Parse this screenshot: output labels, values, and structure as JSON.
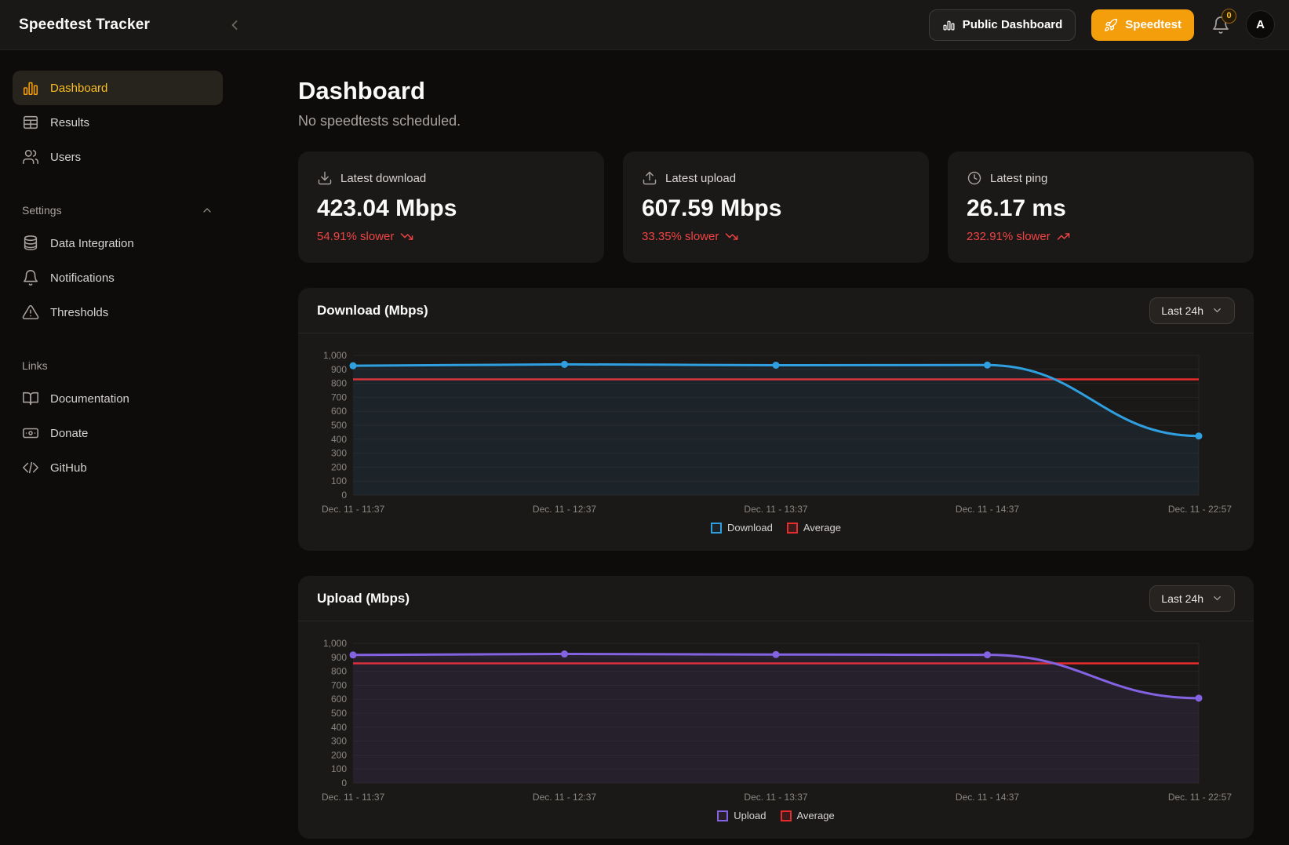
{
  "colors": {
    "accent": "#f59e0b",
    "negative": "#ef4444"
  },
  "header": {
    "app_title": "Speedtest Tracker",
    "public_dashboard_label": "Public Dashboard",
    "speedtest_label": "Speedtest",
    "notification_count": "0",
    "avatar_initial": "A"
  },
  "sidebar": {
    "items": [
      {
        "label": "Dashboard",
        "active": true
      },
      {
        "label": "Results",
        "active": false
      },
      {
        "label": "Users",
        "active": false
      }
    ],
    "settings_label": "Settings",
    "settings_items": [
      {
        "label": "Data Integration"
      },
      {
        "label": "Notifications"
      },
      {
        "label": "Thresholds"
      }
    ],
    "links_label": "Links",
    "links_items": [
      {
        "label": "Documentation"
      },
      {
        "label": "Donate"
      },
      {
        "label": "GitHub"
      }
    ]
  },
  "main": {
    "title": "Dashboard",
    "subtitle": "No speedtests scheduled.",
    "stats": [
      {
        "label": "Latest download",
        "value": "423.04 Mbps",
        "delta": "54.91% slower",
        "trend": "down"
      },
      {
        "label": "Latest upload",
        "value": "607.59 Mbps",
        "delta": "33.35% slower",
        "trend": "down"
      },
      {
        "label": "Latest ping",
        "value": "26.17 ms",
        "delta": "232.91% slower",
        "trend": "up"
      }
    ]
  },
  "chart_data": [
    {
      "type": "line",
      "title": "Download (Mbps)",
      "range_selector": "Last 24h",
      "x": [
        "Dec. 11 - 11:37",
        "Dec. 11 - 12:37",
        "Dec. 11 - 13:37",
        "Dec. 11 - 14:37",
        "Dec. 11 - 22:57"
      ],
      "series": [
        {
          "name": "Download",
          "values": [
            926,
            936,
            930,
            931,
            423.04
          ],
          "color": "#2f9fe0",
          "fill": "rgba(47,159,224,0.09)"
        },
        {
          "name": "Average",
          "values": [
            829,
            829,
            829,
            829,
            829
          ],
          "color": "#e82c2c",
          "fill": "rgba(232,44,44,0.15)",
          "is_average": true
        }
      ],
      "ylim": [
        0,
        1000
      ],
      "ytick_step": 100,
      "grid": true,
      "legend_position": "bottom"
    },
    {
      "type": "line",
      "title": "Upload (Mbps)",
      "range_selector": "Last 24h",
      "x": [
        "Dec. 11 - 11:37",
        "Dec. 11 - 12:37",
        "Dec. 11 - 13:37",
        "Dec. 11 - 14:37",
        "Dec. 11 - 22:57"
      ],
      "series": [
        {
          "name": "Upload",
          "values": [
            917,
            924,
            920,
            918,
            607.59
          ],
          "color": "#8463e3",
          "fill": "rgba(132,99,227,0.10)"
        },
        {
          "name": "Average",
          "values": [
            857,
            857,
            857,
            857,
            857
          ],
          "color": "#e82c2c",
          "fill": "rgba(232,44,44,0.15)",
          "is_average": true
        }
      ],
      "ylim": [
        0,
        1000
      ],
      "ytick_step": 100,
      "grid": true,
      "legend_position": "bottom"
    }
  ]
}
